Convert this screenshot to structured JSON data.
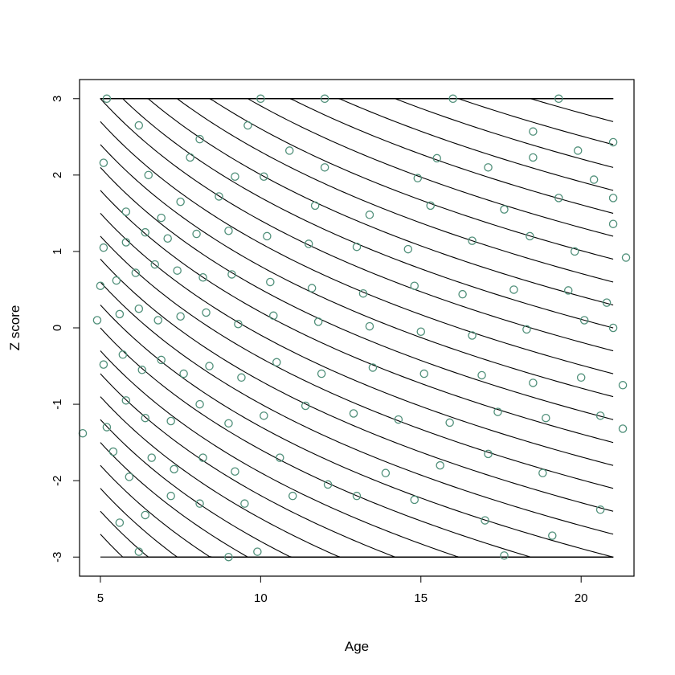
{
  "chart_data": {
    "type": "scatter",
    "title": "",
    "xlabel": "Age",
    "ylabel": "Z score",
    "xlim": [
      4.35,
      21.65
    ],
    "ylim": [
      -3.25,
      3.25
    ],
    "x_ticks": [
      5,
      10,
      15,
      20
    ],
    "y_ticks": [
      -3,
      -2,
      -1,
      0,
      1,
      2,
      3
    ],
    "x_tick_labels": [
      "5",
      "10",
      "15",
      "20"
    ],
    "y_tick_labels": [
      "-3",
      "-2",
      "-1",
      "0",
      "1",
      "2",
      "3"
    ],
    "grid": false,
    "legend": "none",
    "series": [
      {
        "kind": "curves",
        "color": "#000000",
        "description_family": "decreasing reference curves clipped to z in [-3, 3] over age 5–21",
        "curve_count": 38
      },
      {
        "kind": "points",
        "color": "#4f8f79",
        "marker": "open-circle",
        "points": [
          [
            5.2,
            3.0
          ],
          [
            10.0,
            3.0
          ],
          [
            12.0,
            3.0
          ],
          [
            16.0,
            3.0
          ],
          [
            19.3,
            3.0
          ],
          [
            6.2,
            2.65
          ],
          [
            9.6,
            2.65
          ],
          [
            8.1,
            2.47
          ],
          [
            18.5,
            2.57
          ],
          [
            21.0,
            2.43
          ],
          [
            5.1,
            2.16
          ],
          [
            7.8,
            2.23
          ],
          [
            10.9,
            2.32
          ],
          [
            15.5,
            2.22
          ],
          [
            18.5,
            2.23
          ],
          [
            19.9,
            2.32
          ],
          [
            6.5,
            2.0
          ],
          [
            9.2,
            1.98
          ],
          [
            12.0,
            2.1
          ],
          [
            14.9,
            1.96
          ],
          [
            17.1,
            2.1
          ],
          [
            20.4,
            1.94
          ],
          [
            5.8,
            1.52
          ],
          [
            6.9,
            1.44
          ],
          [
            7.5,
            1.65
          ],
          [
            8.7,
            1.72
          ],
          [
            10.1,
            1.98
          ],
          [
            11.7,
            1.6
          ],
          [
            13.4,
            1.48
          ],
          [
            15.3,
            1.6
          ],
          [
            17.6,
            1.55
          ],
          [
            19.3,
            1.7
          ],
          [
            21.0,
            1.7
          ],
          [
            5.1,
            1.05
          ],
          [
            5.8,
            1.12
          ],
          [
            6.4,
            1.25
          ],
          [
            7.1,
            1.17
          ],
          [
            8.0,
            1.23
          ],
          [
            9.0,
            1.27
          ],
          [
            10.2,
            1.2
          ],
          [
            11.5,
            1.1
          ],
          [
            13.0,
            1.06
          ],
          [
            14.6,
            1.03
          ],
          [
            16.6,
            1.14
          ],
          [
            18.4,
            1.2
          ],
          [
            19.8,
            1.0
          ],
          [
            21.0,
            1.36
          ],
          [
            21.4,
            0.92
          ],
          [
            5.0,
            0.55
          ],
          [
            5.5,
            0.62
          ],
          [
            6.1,
            0.72
          ],
          [
            6.7,
            0.83
          ],
          [
            7.4,
            0.75
          ],
          [
            8.2,
            0.66
          ],
          [
            9.1,
            0.7
          ],
          [
            10.3,
            0.6
          ],
          [
            11.6,
            0.52
          ],
          [
            13.2,
            0.45
          ],
          [
            14.8,
            0.55
          ],
          [
            16.3,
            0.44
          ],
          [
            17.9,
            0.5
          ],
          [
            19.6,
            0.49
          ],
          [
            20.8,
            0.33
          ],
          [
            4.9,
            0.1
          ],
          [
            5.6,
            0.18
          ],
          [
            6.2,
            0.25
          ],
          [
            6.8,
            0.1
          ],
          [
            7.5,
            0.15
          ],
          [
            8.3,
            0.2
          ],
          [
            9.3,
            0.05
          ],
          [
            10.4,
            0.16
          ],
          [
            11.8,
            0.08
          ],
          [
            13.4,
            0.02
          ],
          [
            15.0,
            -0.05
          ],
          [
            16.6,
            -0.1
          ],
          [
            18.3,
            -0.02
          ],
          [
            20.1,
            0.1
          ],
          [
            21.0,
            0.0
          ],
          [
            5.1,
            -0.48
          ],
          [
            5.7,
            -0.35
          ],
          [
            6.3,
            -0.55
          ],
          [
            6.9,
            -0.42
          ],
          [
            7.6,
            -0.6
          ],
          [
            8.4,
            -0.5
          ],
          [
            9.4,
            -0.65
          ],
          [
            10.5,
            -0.45
          ],
          [
            11.9,
            -0.6
          ],
          [
            13.5,
            -0.52
          ],
          [
            15.1,
            -0.6
          ],
          [
            16.9,
            -0.62
          ],
          [
            18.5,
            -0.72
          ],
          [
            20.0,
            -0.65
          ],
          [
            21.3,
            -0.75
          ],
          [
            4.45,
            -1.38
          ],
          [
            5.2,
            -1.3
          ],
          [
            5.8,
            -0.95
          ],
          [
            6.4,
            -1.18
          ],
          [
            7.2,
            -1.22
          ],
          [
            8.1,
            -1.0
          ],
          [
            9.0,
            -1.25
          ],
          [
            10.1,
            -1.15
          ],
          [
            11.4,
            -1.02
          ],
          [
            12.9,
            -1.12
          ],
          [
            14.3,
            -1.2
          ],
          [
            15.9,
            -1.24
          ],
          [
            17.4,
            -1.1
          ],
          [
            18.9,
            -1.18
          ],
          [
            20.6,
            -1.15
          ],
          [
            21.3,
            -1.32
          ],
          [
            5.4,
            -1.62
          ],
          [
            5.9,
            -1.95
          ],
          [
            6.6,
            -1.7
          ],
          [
            7.3,
            -1.85
          ],
          [
            8.2,
            -1.7
          ],
          [
            9.2,
            -1.88
          ],
          [
            10.6,
            -1.7
          ],
          [
            12.1,
            -2.05
          ],
          [
            13.9,
            -1.9
          ],
          [
            15.6,
            -1.8
          ],
          [
            17.1,
            -1.65
          ],
          [
            18.8,
            -1.9
          ],
          [
            5.6,
            -2.55
          ],
          [
            6.4,
            -2.45
          ],
          [
            7.2,
            -2.2
          ],
          [
            8.1,
            -2.3
          ],
          [
            9.5,
            -2.3
          ],
          [
            11.0,
            -2.2
          ],
          [
            13.0,
            -2.2
          ],
          [
            14.8,
            -2.25
          ],
          [
            17.0,
            -2.52
          ],
          [
            19.1,
            -2.72
          ],
          [
            20.6,
            -2.38
          ],
          [
            6.2,
            -2.93
          ],
          [
            9.0,
            -3.0
          ],
          [
            9.9,
            -2.93
          ],
          [
            17.6,
            -2.98
          ]
        ]
      }
    ]
  }
}
